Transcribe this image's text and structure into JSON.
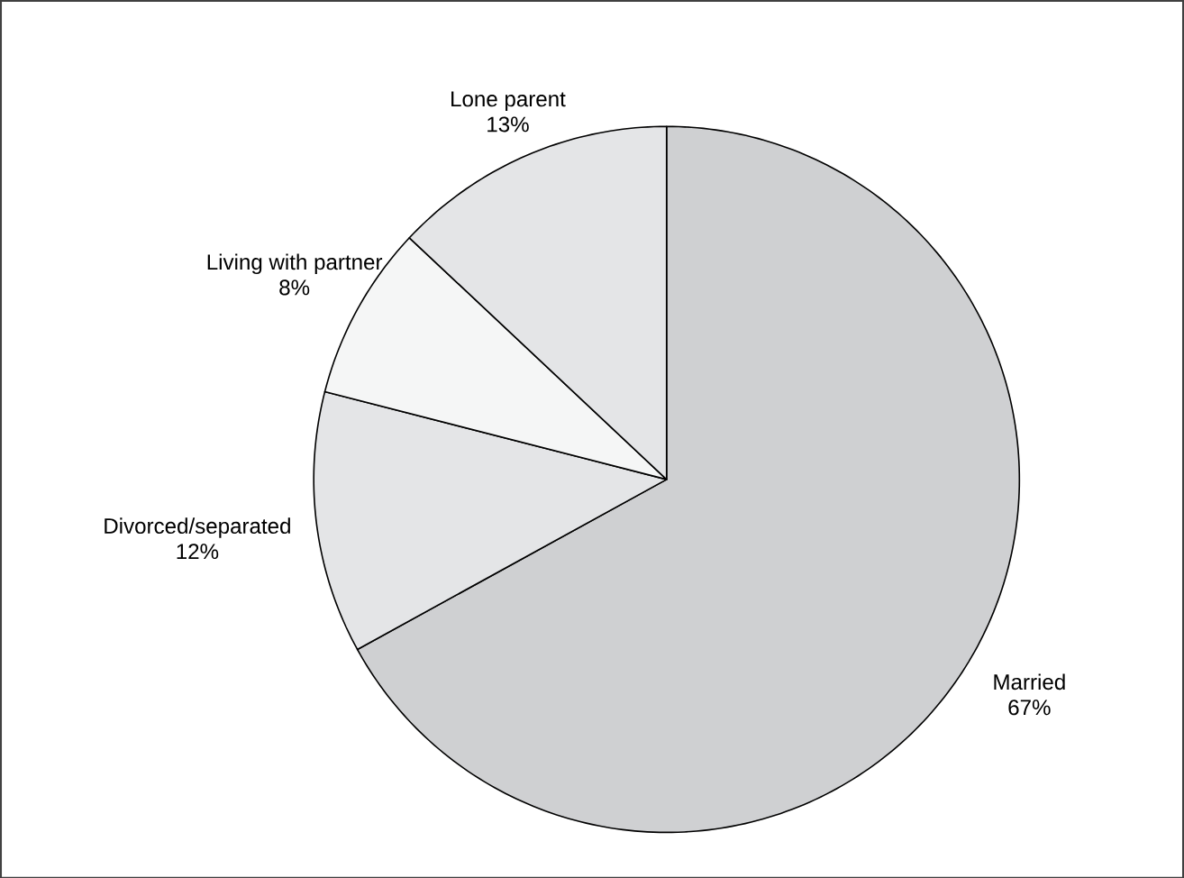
{
  "chart_data": {
    "type": "pie",
    "categories": [
      "Married",
      "Divorced/separated",
      "Living with partner",
      "Lone parent"
    ],
    "values": [
      67,
      12,
      8,
      13
    ],
    "value_labels": [
      "67%",
      "12%",
      "8%",
      "13%"
    ],
    "colors": [
      "#cfd0d2",
      "#e4e5e7",
      "#f5f6f6",
      "#e4e5e7"
    ]
  }
}
